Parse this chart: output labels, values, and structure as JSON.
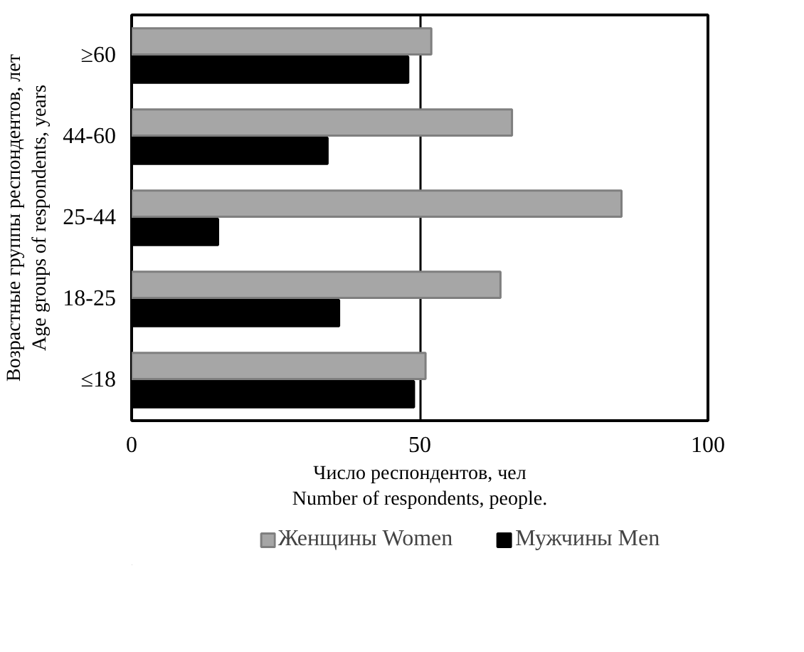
{
  "chart_data": {
    "type": "bar",
    "orientation": "horizontal",
    "xlabel": "Число респондентов, чел\nNumber of respondents, people.",
    "ylabel": "Возрастные группы респондентов, лет\nAge groups of respondents, years",
    "categories": [
      "≥60",
      "44-60",
      "25-44",
      "18-25",
      "≤18"
    ],
    "series": [
      {
        "name": "Женщины Women",
        "color": "#a6a6a6",
        "values": [
          52,
          66,
          85,
          64,
          51
        ]
      },
      {
        "name": "Мужчины Men",
        "color": "#000000",
        "values": [
          48,
          34,
          15,
          36,
          49
        ]
      }
    ],
    "xlim": [
      0,
      100
    ],
    "xticks": [
      0,
      50,
      100
    ],
    "grid": "x",
    "legend": "bottom"
  }
}
